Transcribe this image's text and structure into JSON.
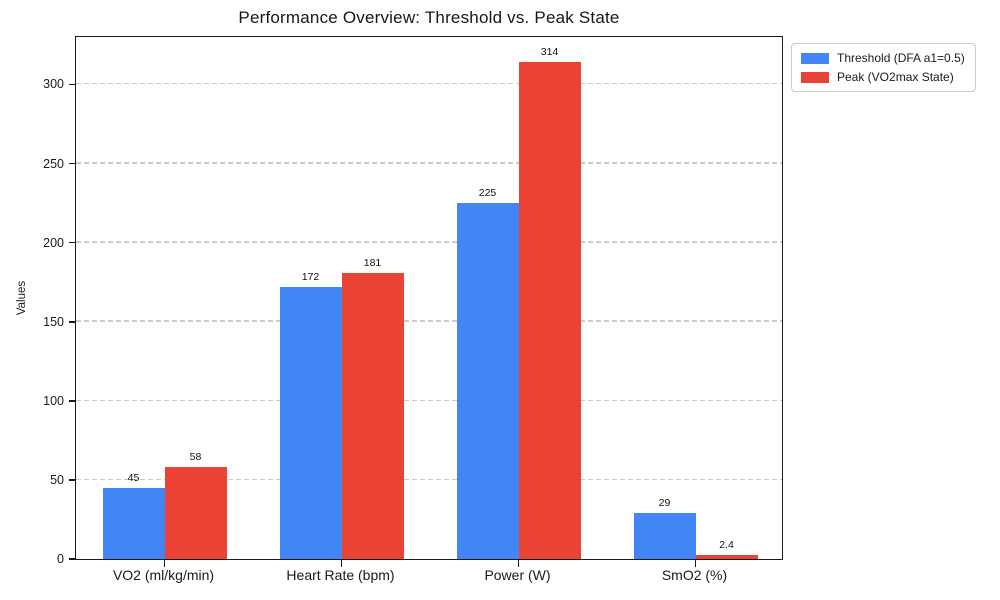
{
  "chart_data": {
    "type": "bar",
    "title": "Performance Overview: Threshold vs. Peak State",
    "ylabel": "Values",
    "xlabel": "",
    "categories": [
      "VO2 (ml/kg/min)",
      "Heart Rate (bpm)",
      "Power (W)",
      "SmO2 (%)"
    ],
    "series": [
      {
        "name": "Threshold (DFA a1=0.5)",
        "color": "#4285F4",
        "values": [
          45,
          172,
          225,
          29
        ]
      },
      {
        "name": "Peak (VO2max State)",
        "color": "#EA4335",
        "values": [
          58,
          181,
          314,
          2.4
        ]
      }
    ],
    "ylim": [
      0,
      330
    ],
    "yticks": [
      0,
      50,
      100,
      150,
      200,
      250,
      300
    ],
    "grid": "horizontal-dashed",
    "gridline_color": "#cccccc",
    "legend_position": "top-right-outside",
    "bar_value_labels": [
      "45",
      "58",
      "172",
      "181",
      "225",
      "314",
      "29",
      "2.4"
    ]
  }
}
